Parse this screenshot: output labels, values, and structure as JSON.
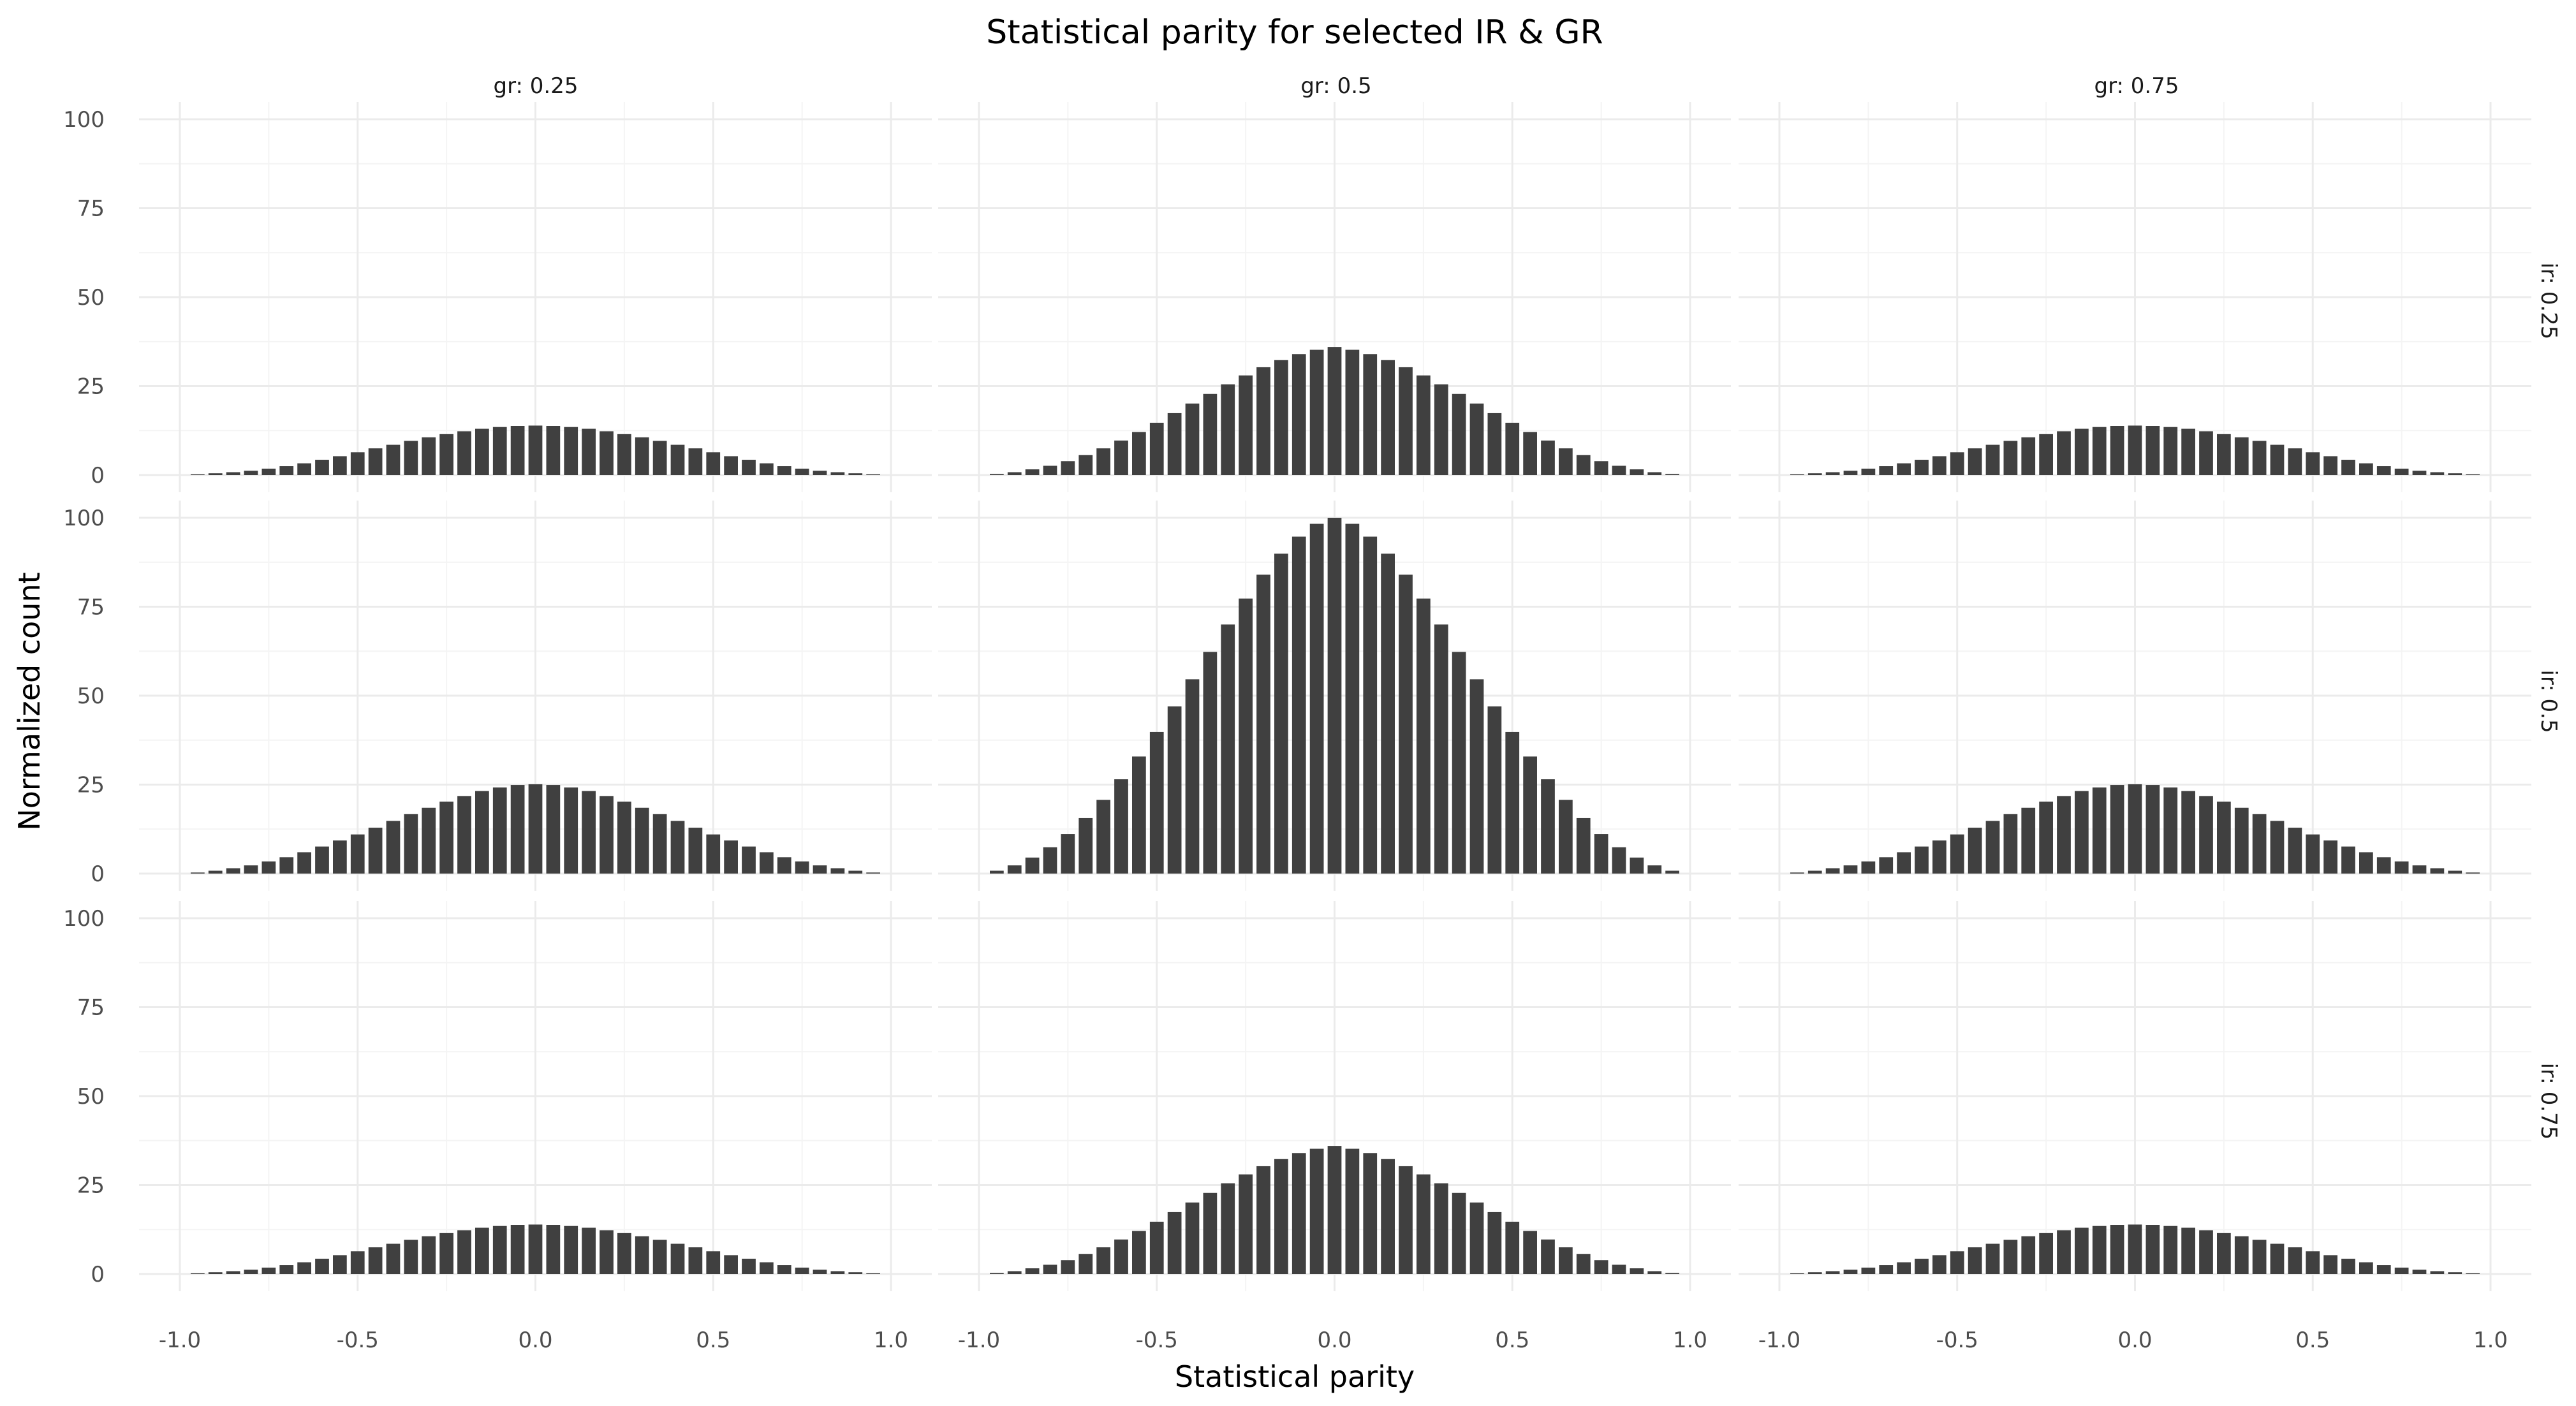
{
  "chart_data": {
    "type": "bar",
    "title": "Statistical parity for selected IR & GR",
    "xlabel": "Statistical parity",
    "ylabel": "Normalized count",
    "xlim": [
      -1.0,
      1.0
    ],
    "ylim": [
      0,
      100
    ],
    "x_ticks": [
      "-1.0",
      "-0.5",
      "0.0",
      "0.5",
      "1.0"
    ],
    "y_ticks": [
      "0",
      "25",
      "50",
      "75",
      "100"
    ],
    "grid": true,
    "bar_color": "#404040",
    "grid_color": "#ebebeb",
    "facet_cols": {
      "variable": "gr",
      "labels": [
        "gr: 0.25",
        "gr: 0.5",
        "gr: 0.75"
      ]
    },
    "facet_rows": {
      "variable": "ir",
      "labels": [
        "ir: 0.25",
        "ir: 0.5",
        "ir: 0.75"
      ]
    },
    "panels": [
      {
        "row": 0,
        "col": 0,
        "gr": "0.25",
        "ir": "0.25",
        "x": [
          -0.95,
          -0.9,
          -0.85,
          -0.8,
          -0.75,
          -0.7,
          -0.65,
          -0.6,
          -0.55,
          -0.5,
          -0.45,
          -0.4,
          -0.35,
          -0.3,
          -0.25,
          -0.2,
          -0.15,
          -0.1,
          -0.05,
          0,
          0.05,
          0.1,
          0.15,
          0.2,
          0.25,
          0.3,
          0.35,
          0.4,
          0.45,
          0.5,
          0.55,
          0.6,
          0.65,
          0.7,
          0.75,
          0.8,
          0.85,
          0.9,
          0.95
        ],
        "values": [
          0.2,
          0.5,
          0.8,
          1.2,
          1.8,
          2.5,
          3.3,
          4.3,
          5.3,
          6.4,
          7.5,
          8.5,
          9.6,
          10.6,
          11.5,
          12.3,
          13.0,
          13.5,
          13.8,
          13.9,
          13.8,
          13.5,
          13.0,
          12.3,
          11.5,
          10.6,
          9.6,
          8.5,
          7.5,
          6.4,
          5.3,
          4.3,
          3.3,
          2.5,
          1.8,
          1.2,
          0.8,
          0.5,
          0.2
        ]
      },
      {
        "row": 0,
        "col": 1,
        "gr": "0.5",
        "ir": "0.25",
        "x": [
          -0.95,
          -0.9,
          -0.85,
          -0.8,
          -0.75,
          -0.7,
          -0.65,
          -0.6,
          -0.55,
          -0.5,
          -0.45,
          -0.4,
          -0.35,
          -0.3,
          -0.25,
          -0.2,
          -0.15,
          -0.1,
          -0.05,
          0,
          0.05,
          0.1,
          0.15,
          0.2,
          0.25,
          0.3,
          0.35,
          0.4,
          0.45,
          0.5,
          0.55,
          0.6,
          0.65,
          0.7,
          0.75,
          0.8,
          0.85,
          0.9,
          0.95
        ],
        "values": [
          0.3,
          0.8,
          1.6,
          2.6,
          3.9,
          5.6,
          7.5,
          9.7,
          12.1,
          14.7,
          17.4,
          20.1,
          22.8,
          25.5,
          28.0,
          30.3,
          32.3,
          34.0,
          35.2,
          36.0,
          35.2,
          34.0,
          32.3,
          30.3,
          28.0,
          25.5,
          22.8,
          20.1,
          17.4,
          14.7,
          12.1,
          9.7,
          7.5,
          5.6,
          3.9,
          2.6,
          1.6,
          0.8,
          0.3
        ]
      },
      {
        "row": 0,
        "col": 2,
        "gr": "0.75",
        "ir": "0.25",
        "x": [
          -0.95,
          -0.9,
          -0.85,
          -0.8,
          -0.75,
          -0.7,
          -0.65,
          -0.6,
          -0.55,
          -0.5,
          -0.45,
          -0.4,
          -0.35,
          -0.3,
          -0.25,
          -0.2,
          -0.15,
          -0.1,
          -0.05,
          0,
          0.05,
          0.1,
          0.15,
          0.2,
          0.25,
          0.3,
          0.35,
          0.4,
          0.45,
          0.5,
          0.55,
          0.6,
          0.65,
          0.7,
          0.75,
          0.8,
          0.85,
          0.9,
          0.95
        ],
        "values": [
          0.2,
          0.5,
          0.8,
          1.2,
          1.8,
          2.5,
          3.3,
          4.3,
          5.3,
          6.4,
          7.5,
          8.5,
          9.6,
          10.6,
          11.5,
          12.3,
          13.0,
          13.5,
          13.8,
          13.9,
          13.8,
          13.5,
          13.0,
          12.3,
          11.5,
          10.6,
          9.6,
          8.5,
          7.5,
          6.4,
          5.3,
          4.3,
          3.3,
          2.5,
          1.8,
          1.2,
          0.8,
          0.5,
          0.2
        ]
      },
      {
        "row": 1,
        "col": 0,
        "gr": "0.25",
        "ir": "0.5",
        "x": [
          -0.95,
          -0.9,
          -0.85,
          -0.8,
          -0.75,
          -0.7,
          -0.65,
          -0.6,
          -0.55,
          -0.5,
          -0.45,
          -0.4,
          -0.35,
          -0.3,
          -0.25,
          -0.2,
          -0.15,
          -0.1,
          -0.05,
          0,
          0.05,
          0.1,
          0.15,
          0.2,
          0.25,
          0.3,
          0.35,
          0.4,
          0.45,
          0.5,
          0.55,
          0.6,
          0.65,
          0.7,
          0.75,
          0.8,
          0.85,
          0.9,
          0.95
        ],
        "values": [
          0.3,
          0.8,
          1.5,
          2.3,
          3.4,
          4.6,
          6.0,
          7.6,
          9.3,
          11.0,
          12.9,
          14.8,
          16.7,
          18.5,
          20.2,
          21.8,
          23.2,
          24.2,
          24.9,
          25.1,
          24.9,
          24.2,
          23.2,
          21.8,
          20.2,
          18.5,
          16.7,
          14.8,
          12.9,
          11.0,
          9.3,
          7.6,
          6.0,
          4.6,
          3.4,
          2.3,
          1.5,
          0.8,
          0.3
        ]
      },
      {
        "row": 1,
        "col": 1,
        "gr": "0.5",
        "ir": "0.5",
        "x": [
          -0.95,
          -0.9,
          -0.85,
          -0.8,
          -0.75,
          -0.7,
          -0.65,
          -0.6,
          -0.55,
          -0.5,
          -0.45,
          -0.4,
          -0.35,
          -0.3,
          -0.25,
          -0.2,
          -0.15,
          -0.1,
          -0.05,
          0,
          0.05,
          0.1,
          0.15,
          0.2,
          0.25,
          0.3,
          0.35,
          0.4,
          0.45,
          0.5,
          0.55,
          0.6,
          0.65,
          0.7,
          0.75,
          0.8,
          0.85,
          0.9,
          0.95
        ],
        "values": [
          0.8,
          2.3,
          4.5,
          7.4,
          11.1,
          15.6,
          20.7,
          26.5,
          32.9,
          39.8,
          47.0,
          54.6,
          62.3,
          70.0,
          77.3,
          84.0,
          89.9,
          94.7,
          98.3,
          100.0,
          98.3,
          94.7,
          89.9,
          84.0,
          77.3,
          70.0,
          62.3,
          54.6,
          47.0,
          39.8,
          32.9,
          26.5,
          20.7,
          15.6,
          11.1,
          7.4,
          4.5,
          2.3,
          0.8
        ]
      },
      {
        "row": 1,
        "col": 2,
        "gr": "0.75",
        "ir": "0.5",
        "x": [
          -0.95,
          -0.9,
          -0.85,
          -0.8,
          -0.75,
          -0.7,
          -0.65,
          -0.6,
          -0.55,
          -0.5,
          -0.45,
          -0.4,
          -0.35,
          -0.3,
          -0.25,
          -0.2,
          -0.15,
          -0.1,
          -0.05,
          0,
          0.05,
          0.1,
          0.15,
          0.2,
          0.25,
          0.3,
          0.35,
          0.4,
          0.45,
          0.5,
          0.55,
          0.6,
          0.65,
          0.7,
          0.75,
          0.8,
          0.85,
          0.9,
          0.95
        ],
        "values": [
          0.3,
          0.8,
          1.5,
          2.3,
          3.4,
          4.6,
          6.0,
          7.6,
          9.3,
          11.0,
          12.9,
          14.8,
          16.7,
          18.5,
          20.2,
          21.8,
          23.2,
          24.2,
          24.9,
          25.1,
          24.9,
          24.2,
          23.2,
          21.8,
          20.2,
          18.5,
          16.7,
          14.8,
          12.9,
          11.0,
          9.3,
          7.6,
          6.0,
          4.6,
          3.4,
          2.3,
          1.5,
          0.8,
          0.3
        ]
      },
      {
        "row": 2,
        "col": 0,
        "gr": "0.25",
        "ir": "0.75",
        "x": [
          -0.95,
          -0.9,
          -0.85,
          -0.8,
          -0.75,
          -0.7,
          -0.65,
          -0.6,
          -0.55,
          -0.5,
          -0.45,
          -0.4,
          -0.35,
          -0.3,
          -0.25,
          -0.2,
          -0.15,
          -0.1,
          -0.05,
          0,
          0.05,
          0.1,
          0.15,
          0.2,
          0.25,
          0.3,
          0.35,
          0.4,
          0.45,
          0.5,
          0.55,
          0.6,
          0.65,
          0.7,
          0.75,
          0.8,
          0.85,
          0.9,
          0.95
        ],
        "values": [
          0.2,
          0.5,
          0.8,
          1.2,
          1.8,
          2.5,
          3.3,
          4.3,
          5.3,
          6.4,
          7.5,
          8.5,
          9.6,
          10.6,
          11.5,
          12.3,
          13.0,
          13.5,
          13.8,
          13.9,
          13.8,
          13.5,
          13.0,
          12.3,
          11.5,
          10.6,
          9.6,
          8.5,
          7.5,
          6.4,
          5.3,
          4.3,
          3.3,
          2.5,
          1.8,
          1.2,
          0.8,
          0.5,
          0.2
        ]
      },
      {
        "row": 2,
        "col": 1,
        "gr": "0.5",
        "ir": "0.75",
        "x": [
          -0.95,
          -0.9,
          -0.85,
          -0.8,
          -0.75,
          -0.7,
          -0.65,
          -0.6,
          -0.55,
          -0.5,
          -0.45,
          -0.4,
          -0.35,
          -0.3,
          -0.25,
          -0.2,
          -0.15,
          -0.1,
          -0.05,
          0,
          0.05,
          0.1,
          0.15,
          0.2,
          0.25,
          0.3,
          0.35,
          0.4,
          0.45,
          0.5,
          0.55,
          0.6,
          0.65,
          0.7,
          0.75,
          0.8,
          0.85,
          0.9,
          0.95
        ],
        "values": [
          0.3,
          0.8,
          1.6,
          2.6,
          3.9,
          5.6,
          7.5,
          9.7,
          12.1,
          14.7,
          17.4,
          20.1,
          22.8,
          25.5,
          28.0,
          30.3,
          32.3,
          34.0,
          35.2,
          36.0,
          35.2,
          34.0,
          32.3,
          30.3,
          28.0,
          25.5,
          22.8,
          20.1,
          17.4,
          14.7,
          12.1,
          9.7,
          7.5,
          5.6,
          3.9,
          2.6,
          1.6,
          0.8,
          0.3
        ]
      },
      {
        "row": 2,
        "col": 2,
        "gr": "0.75",
        "ir": "0.75",
        "x": [
          -0.95,
          -0.9,
          -0.85,
          -0.8,
          -0.75,
          -0.7,
          -0.65,
          -0.6,
          -0.55,
          -0.5,
          -0.45,
          -0.4,
          -0.35,
          -0.3,
          -0.25,
          -0.2,
          -0.15,
          -0.1,
          -0.05,
          0,
          0.05,
          0.1,
          0.15,
          0.2,
          0.25,
          0.3,
          0.35,
          0.4,
          0.45,
          0.5,
          0.55,
          0.6,
          0.65,
          0.7,
          0.75,
          0.8,
          0.85,
          0.9,
          0.95
        ],
        "values": [
          0.2,
          0.5,
          0.8,
          1.2,
          1.8,
          2.5,
          3.3,
          4.3,
          5.3,
          6.4,
          7.5,
          8.5,
          9.6,
          10.6,
          11.5,
          12.3,
          13.0,
          13.5,
          13.8,
          13.9,
          13.8,
          13.5,
          13.0,
          12.3,
          11.5,
          10.6,
          9.6,
          8.5,
          7.5,
          6.4,
          5.3,
          4.3,
          3.3,
          2.5,
          1.8,
          1.2,
          0.8,
          0.5,
          0.2
        ]
      }
    ]
  }
}
